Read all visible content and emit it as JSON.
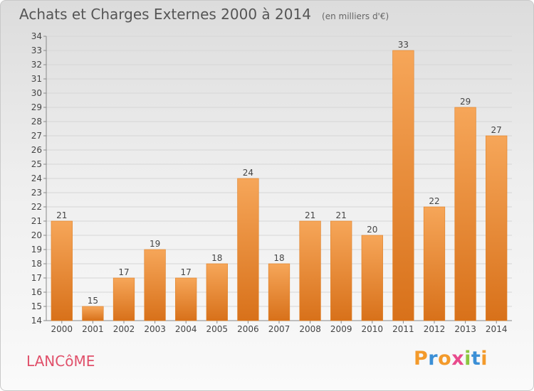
{
  "chart_data": {
    "type": "bar",
    "title": "Achats et Charges Externes 2000 à 2014",
    "subtitle": "(en milliers d'€)",
    "categories": [
      "2000",
      "2001",
      "2002",
      "2003",
      "2004",
      "2005",
      "2006",
      "2007",
      "2008",
      "2009",
      "2010",
      "2011",
      "2012",
      "2013",
      "2014"
    ],
    "values": [
      21,
      15,
      17,
      19,
      17,
      18,
      24,
      18,
      21,
      21,
      20,
      33,
      22,
      29,
      27
    ],
    "ylim": [
      14,
      34
    ],
    "yticks": [
      14,
      15,
      16,
      17,
      18,
      19,
      20,
      21,
      22,
      23,
      24,
      25,
      26,
      27,
      28,
      29,
      30,
      31,
      32,
      33,
      34
    ],
    "xlabel": "",
    "ylabel": "",
    "grid": true,
    "bar_color": "#f0902e"
  },
  "footer": {
    "commune": "LANCôME",
    "brand": "Proxiti"
  },
  "colors": {
    "commune": "#e0506a",
    "brand_letters": [
      "#f39a2b",
      "#3b8fd6",
      "#f39a2b",
      "#e84a8c",
      "#8cc63f",
      "#3b8fd6",
      "#f39a2b"
    ]
  }
}
